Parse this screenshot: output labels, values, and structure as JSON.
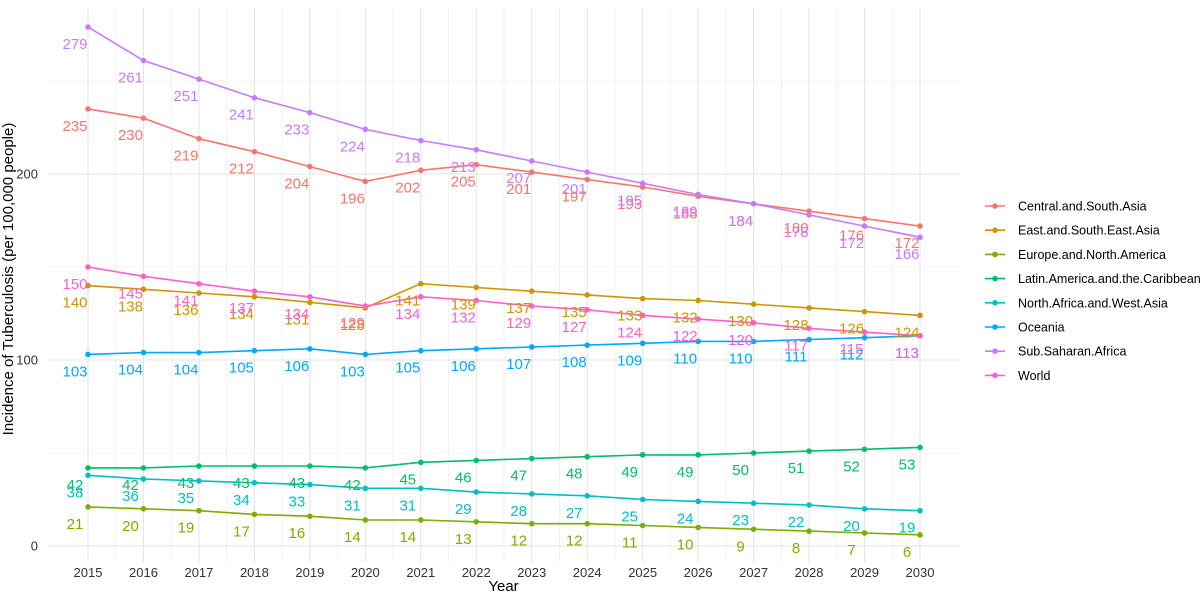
{
  "chart_data": {
    "type": "line",
    "xlabel": "Year",
    "ylabel": "Incidence of Tuberculosis (per 100,000 people)",
    "x": [
      2015,
      2016,
      2017,
      2018,
      2019,
      2020,
      2021,
      2022,
      2023,
      2024,
      2025,
      2026,
      2027,
      2028,
      2029,
      2030
    ],
    "yticks": [
      0,
      100,
      200
    ],
    "ylim": [
      0,
      279
    ],
    "grid": true,
    "legend_position": "right",
    "series": [
      {
        "name": "Central.and.South.Asia",
        "color": "#F8766D",
        "values": [
          235,
          230,
          219,
          212,
          204,
          196,
          202,
          205,
          201,
          197,
          193,
          188,
          184,
          180,
          176,
          172
        ]
      },
      {
        "name": "East.and.South.East.Asia",
        "color": "#CD9600",
        "values": [
          140,
          138,
          136,
          134,
          131,
          128,
          141,
          139,
          137,
          135,
          133,
          132,
          130,
          128,
          126,
          124
        ]
      },
      {
        "name": "Europe.and.North.America",
        "color": "#7CAE00",
        "values": [
          21,
          20,
          19,
          17,
          16,
          14,
          14,
          13,
          12,
          12,
          11,
          10,
          9,
          8,
          7,
          6
        ]
      },
      {
        "name": "Latin.America.and.the.Caribbean",
        "color": "#00BE67",
        "values": [
          42,
          42,
          43,
          43,
          43,
          42,
          45,
          46,
          47,
          48,
          49,
          49,
          50,
          51,
          52,
          53
        ]
      },
      {
        "name": "North.Africa.and.West.Asia",
        "color": "#00BFC4",
        "values": [
          38,
          36,
          35,
          34,
          33,
          31,
          31,
          29,
          28,
          27,
          25,
          24,
          23,
          22,
          20,
          19
        ]
      },
      {
        "name": "Oceania",
        "color": "#00A9FF",
        "values": [
          103,
          104,
          104,
          105,
          106,
          103,
          105,
          106,
          107,
          108,
          109,
          110,
          110,
          111,
          112,
          113
        ]
      },
      {
        "name": "Sub.Saharan.Africa",
        "color": "#C77CFF",
        "values": [
          279,
          261,
          251,
          241,
          233,
          224,
          218,
          213,
          207,
          201,
          195,
          189,
          184,
          178,
          172,
          166
        ]
      },
      {
        "name": "World",
        "color": "#FF61CC",
        "values": [
          150,
          145,
          141,
          137,
          134,
          129,
          134,
          132,
          129,
          127,
          124,
          122,
          120,
          117,
          115,
          113
        ]
      }
    ]
  }
}
